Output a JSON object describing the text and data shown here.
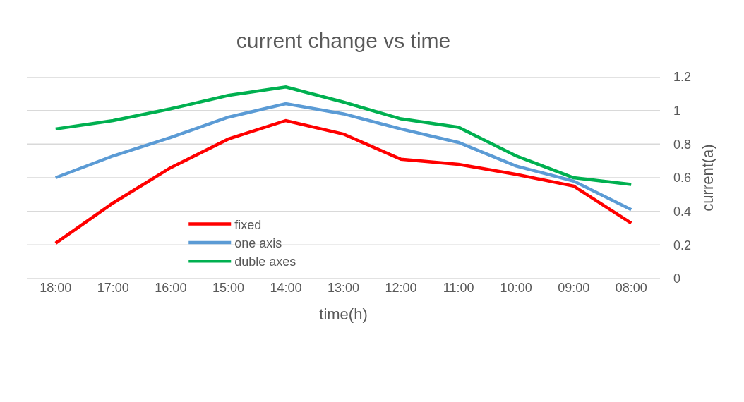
{
  "chart_data": {
    "type": "line",
    "title": "current change vs time",
    "xlabel": "time(h)",
    "ylabel": "current(a)",
    "categories": [
      "18:00",
      "17:00",
      "16:00",
      "15:00",
      "14:00",
      "13:00",
      "12:00",
      "11:00",
      "10:00",
      "09:00",
      "08:00"
    ],
    "series": [
      {
        "name": "fixed",
        "color": "#ff0000",
        "values": [
          0.21,
          0.45,
          0.66,
          0.83,
          0.94,
          0.86,
          0.71,
          0.68,
          0.62,
          0.55,
          0.33
        ]
      },
      {
        "name": "one axis",
        "color": "#5b9bd5",
        "values": [
          0.6,
          0.73,
          0.84,
          0.96,
          1.04,
          0.98,
          0.89,
          0.81,
          0.67,
          0.58,
          0.41
        ]
      },
      {
        "name": "duble axes",
        "color": "#00b050",
        "values": [
          0.89,
          0.94,
          1.01,
          1.09,
          1.14,
          1.05,
          0.95,
          0.9,
          0.73,
          0.6,
          0.56
        ]
      }
    ],
    "ylim": [
      0,
      1.2
    ],
    "yticks": [
      0,
      0.2,
      0.4,
      0.6,
      0.8,
      1,
      1.2
    ],
    "grid": "y",
    "legend": "bottom left",
    "marker": "none",
    "line_style": "solid"
  }
}
